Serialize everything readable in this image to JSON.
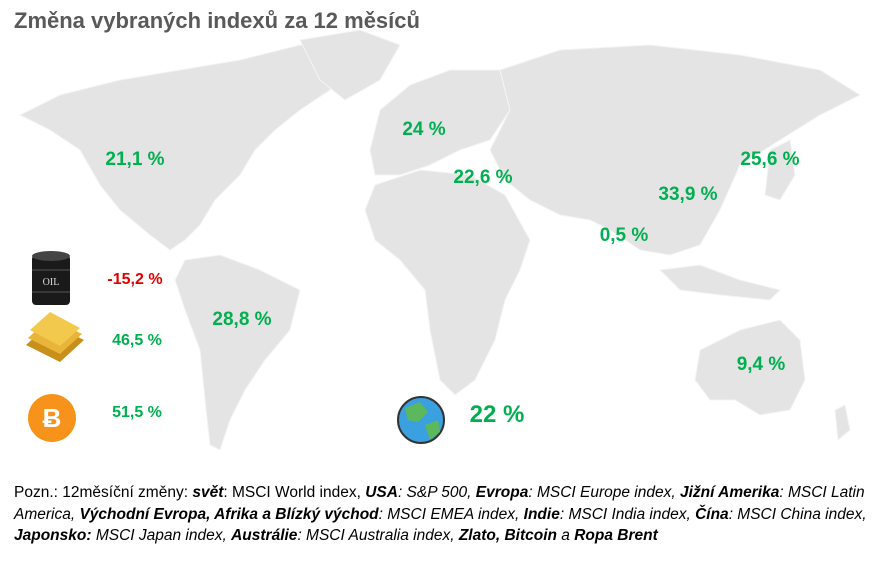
{
  "title": "Změna vybraných indexů za 12 měsíců",
  "regions": [
    {
      "label": "21,1 %",
      "color": "#00b050"
    },
    {
      "label": "24 %",
      "color": "#00b050"
    },
    {
      "label": "22,6 %",
      "color": "#00b050"
    },
    {
      "label": "25,6 %",
      "color": "#00b050"
    },
    {
      "label": "33,9 %",
      "color": "#00b050"
    },
    {
      "label": "0,5 %",
      "color": "#00b050"
    },
    {
      "label": "28,8 %",
      "color": "#00b050"
    },
    {
      "label": "9,4 %",
      "color": "#00b050"
    }
  ],
  "assets": [
    {
      "label": "-15,2 %",
      "color": "#e00000"
    },
    {
      "label": "46,5 %",
      "color": "#00b050"
    },
    {
      "label": "51,5 %",
      "color": "#00b050"
    }
  ],
  "world": {
    "label": "22 %",
    "color": "#00b050"
  },
  "note": [
    {
      "text": "Pozn.: 12měsíční změny: ",
      "style": "normal"
    },
    {
      "text": "svět",
      "style": "bold-italic"
    },
    {
      "text": ": MSCI World index, ",
      "style": "normal"
    },
    {
      "text": "USA",
      "style": "bold-italic"
    },
    {
      "text": ": S&P 500, ",
      "style": "italic"
    },
    {
      "text": "Evropa",
      "style": "bold-italic"
    },
    {
      "text": ": MSCI Europe index, ",
      "style": "italic"
    },
    {
      "text": "Jižní Amerika",
      "style": "bold-italic"
    },
    {
      "text": ": MSCI Latin America, ",
      "style": "italic"
    },
    {
      "text": "Východní Evropa, Afrika a Blízký východ",
      "style": "bold-italic"
    },
    {
      "text": ": MSCI EMEA index, ",
      "style": "italic"
    },
    {
      "text": "Indie",
      "style": "bold-italic"
    },
    {
      "text": ": MSCI India index, ",
      "style": "italic"
    },
    {
      "text": "Čína",
      "style": "bold-italic"
    },
    {
      "text": ": MSCI China index, ",
      "style": "italic"
    },
    {
      "text": "Japonsko:",
      "style": "bold-italic"
    },
    {
      "text": " MSCI Japan index, ",
      "style": "italic"
    },
    {
      "text": "Austrálie",
      "style": "bold-italic"
    },
    {
      "text": ": MSCI Australia index, ",
      "style": "italic"
    },
    {
      "text": "Zlato, Bitcoin",
      "style": "bold-italic"
    },
    {
      "text": " a ",
      "style": "italic"
    },
    {
      "text": "Ropa Brent",
      "style": "bold-italic"
    }
  ]
}
